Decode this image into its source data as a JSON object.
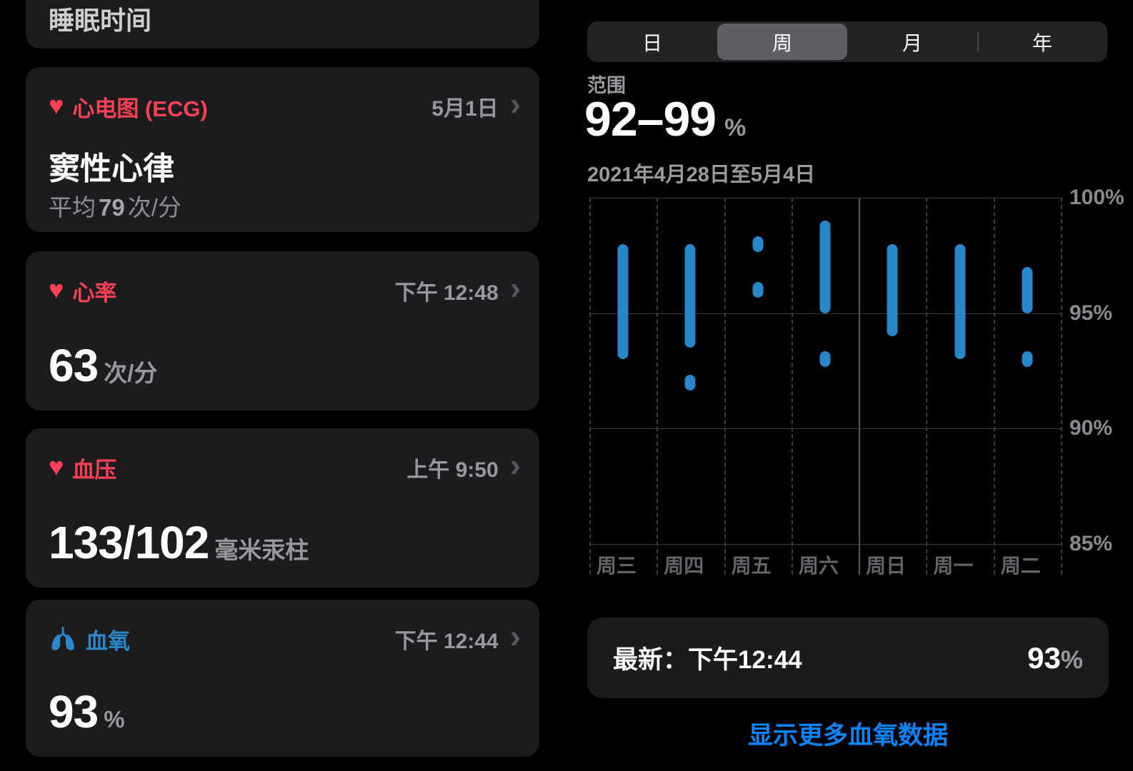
{
  "colors": {
    "background": "#000000",
    "card_background": "#1c1c1e",
    "accent_pink": "#fb4156",
    "accent_blue": "#2a87c9",
    "chart_bar": "#2787c8",
    "link_blue": "#0a84ff",
    "secondary_text": "#98989d"
  },
  "icons": {
    "heart": "♥",
    "chevron_right": "›"
  },
  "left_cards": {
    "sleep": {
      "title": "睡眠时间"
    },
    "ecg": {
      "title": "心电图 (ECG)",
      "date": "5月1日",
      "result": "窦性心律",
      "detail_prefix": "平均",
      "detail_value": "79",
      "detail_unit": "次/分"
    },
    "heart_rate": {
      "title": "心率",
      "time": "下午 12:48",
      "value": "63",
      "unit": "次/分"
    },
    "blood_pressure": {
      "title": "血压",
      "time": "上午 9:50",
      "value": "133/102",
      "unit": "毫米汞柱"
    },
    "blood_oxygen": {
      "title": "血氧",
      "time": "下午 12:44",
      "value": "93",
      "unit": "%"
    }
  },
  "right_panel": {
    "tabs": [
      {
        "label": "日",
        "selected": false
      },
      {
        "label": "周",
        "selected": true
      },
      {
        "label": "月",
        "selected": false
      },
      {
        "label": "年",
        "selected": false
      }
    ],
    "summary": {
      "label": "范围",
      "value": "92–99",
      "unit": "%",
      "date_range": "2021年4月28日至5月4日"
    },
    "latest": {
      "label": "最新：",
      "time": "下午12:44",
      "value": "93",
      "unit": "%"
    },
    "link_label": "显示更多血氧数据"
  },
  "chart_data": {
    "type": "range-bar",
    "title": "血氧饱和度 周视图 范围 92–99%",
    "x_labels": [
      "周三",
      "周四",
      "周五",
      "周六",
      "周日",
      "周一",
      "周二"
    ],
    "y_ticks": [
      "100%",
      "95%",
      "90%",
      "85%"
    ],
    "y_range": [
      85,
      100
    ],
    "grid": {
      "horizontal": "solid",
      "vertical": "dashed",
      "solid_vline_index": 4
    },
    "legend": "none",
    "series": [
      {
        "day": "周三",
        "segments": [
          [
            93,
            98
          ]
        ],
        "dots": []
      },
      {
        "day": "周四",
        "segments": [
          [
            93.5,
            98
          ]
        ],
        "dots": [
          92
        ]
      },
      {
        "day": "周五",
        "segments": [],
        "dots": [
          98,
          96
        ]
      },
      {
        "day": "周六",
        "segments": [
          [
            95,
            99
          ]
        ],
        "dots": [
          93
        ]
      },
      {
        "day": "周日",
        "segments": [
          [
            94,
            98
          ]
        ],
        "dots": []
      },
      {
        "day": "周一",
        "segments": [
          [
            93,
            98
          ]
        ],
        "dots": []
      },
      {
        "day": "周二",
        "segments": [
          [
            95,
            97
          ]
        ],
        "dots": [
          93
        ]
      }
    ]
  }
}
